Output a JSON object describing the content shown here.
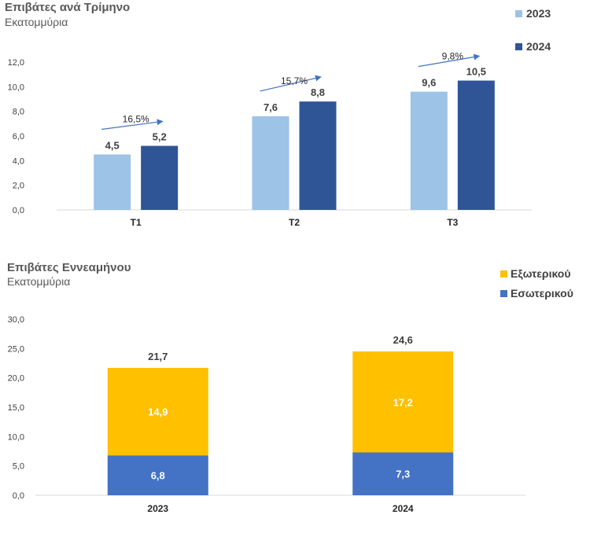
{
  "chart_data": [
    {
      "type": "bar",
      "title": "Επιβάτες ανά Τρίμηνο",
      "subtitle": "Εκατομμύρια",
      "categories": [
        "T1",
        "T2",
        "T3"
      ],
      "series": [
        {
          "name": "2023",
          "values": [
            4.5,
            7.6,
            9.6
          ],
          "labels": [
            "4,5",
            "7,6",
            "9,6"
          ],
          "color": "#9DC3E6"
        },
        {
          "name": "2024",
          "values": [
            5.2,
            8.8,
            10.5
          ],
          "labels": [
            "5,2",
            "8,8",
            "10,5"
          ],
          "color": "#2F5597"
        }
      ],
      "growth_labels": [
        "16,5%",
        "15,7%",
        "9,8%"
      ],
      "ylim": [
        0,
        12
      ],
      "yticks": [
        "0,0",
        "2,0",
        "4,0",
        "6,0",
        "8,0",
        "10,0",
        "12,0"
      ],
      "grid": false,
      "legend": "top-right"
    },
    {
      "type": "bar",
      "stacked": true,
      "title": "Επιβάτες Εννεαμήνου",
      "subtitle": "Εκατομμύρια",
      "categories": [
        "2023",
        "2024"
      ],
      "series": [
        {
          "name": "Εσωτερικού",
          "values": [
            6.8,
            7.3
          ],
          "labels": [
            "6,8",
            "7,3"
          ],
          "color": "#4472C4"
        },
        {
          "name": "Εξωτερικού",
          "values": [
            14.9,
            17.2
          ],
          "labels": [
            "14,9",
            "17,2"
          ],
          "color": "#FFC000"
        }
      ],
      "totals": [
        "21,7",
        "24,6"
      ],
      "ylim": [
        0,
        30
      ],
      "yticks": [
        "0,0",
        "5,0",
        "10,0",
        "15,0",
        "20,0",
        "25,0",
        "30,0"
      ],
      "grid": false,
      "legend": "top-right"
    }
  ]
}
